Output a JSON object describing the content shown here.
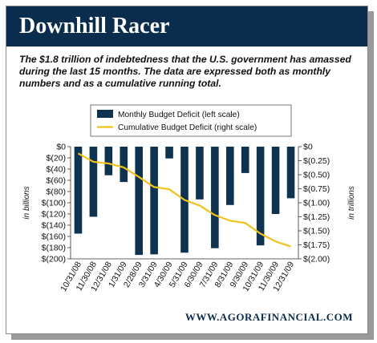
{
  "header": {
    "title": "Downhill Racer"
  },
  "subtitle": "The $1.8 trillion of indebtedness that the U.S. government has amassed during the last 15 months. The data are expressed both as monthly numbers and as a cumulative running total.",
  "footer": {
    "url": "WWW.AGORAFINANCIAL.COM"
  },
  "colors": {
    "banner": "#0b2d4d",
    "bars": "#0d3350",
    "line": "#f2c21a"
  },
  "chart_data": {
    "type": "bar",
    "categories": [
      "10/31/08",
      "11/30/08",
      "12/31/08",
      "1/31/09",
      "2/28/09",
      "3/31/09",
      "4/30/09",
      "5/31/09",
      "6/30/09",
      "7/31/09",
      "8/31/09",
      "9/30/09",
      "10/31/09",
      "11/30/09",
      "12/31/09"
    ],
    "series": [
      {
        "name": "Monthly Budget Deficit (left scale)",
        "type": "bar",
        "axis": "left",
        "values": [
          -155,
          -125,
          -51,
          -63,
          -193,
          -192,
          -21,
          -189,
          -94,
          -181,
          -104,
          -47,
          -176,
          -120,
          -92
        ]
      },
      {
        "name": "Cumulative Budget Deficit (right scale)",
        "type": "line",
        "axis": "right",
        "values": [
          -0.12,
          -0.27,
          -0.3,
          -0.37,
          -0.54,
          -0.72,
          -0.76,
          -0.95,
          -1.05,
          -1.22,
          -1.32,
          -1.36,
          -1.55,
          -1.69,
          -1.78
        ]
      }
    ],
    "ylabel": "in billions",
    "ylabel_right": "in trillions",
    "ylim": [
      -200,
      0
    ],
    "ylim_right": [
      -2.0,
      0
    ],
    "yticks": [
      "$0",
      "$(20)",
      "$(40)",
      "$(60)",
      "$(80)",
      "$(100)",
      "$(120)",
      "$(140)",
      "$(160)",
      "$(180)",
      "$(200)"
    ],
    "yticks_right": [
      "$0",
      "$(0.25)",
      "$(0.50)",
      "$(0.75)",
      "$(1.00)",
      "$(1.25)",
      "$(1.50)",
      "$(1.75)",
      "$(2.00)"
    ],
    "legend_position": "top",
    "grid": false
  }
}
